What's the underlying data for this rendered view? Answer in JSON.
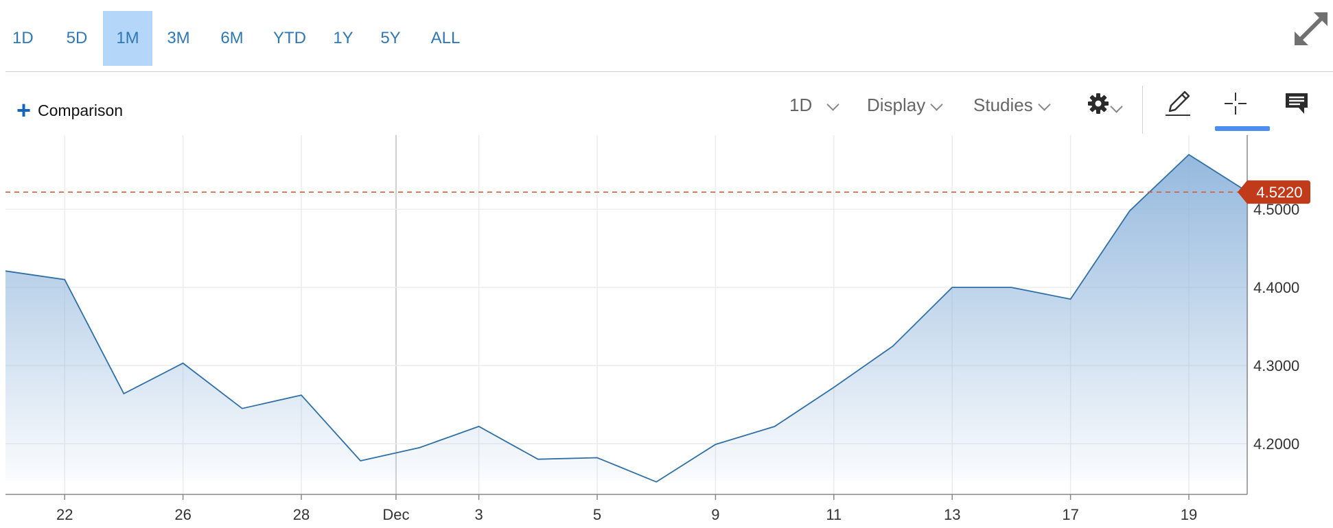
{
  "range_bar": {
    "buttons": [
      {
        "label": "1D",
        "active": false
      },
      {
        "label": "5D",
        "active": false
      },
      {
        "label": "1M",
        "active": true
      },
      {
        "label": "3M",
        "active": false
      },
      {
        "label": "6M",
        "active": false
      },
      {
        "label": "YTD",
        "active": false
      },
      {
        "label": "1Y",
        "active": false
      },
      {
        "label": "5Y",
        "active": false
      },
      {
        "label": "ALL",
        "active": false
      }
    ],
    "expand_icon": "expand-arrows-icon"
  },
  "toolbar": {
    "comparison_label": "Comparison",
    "interval_label": "1D",
    "display_label": "Display",
    "studies_label": "Studies",
    "settings_icon": "gear-icon",
    "draw_icon": "pencil-icon",
    "crosshair_icon": "crosshair-icon",
    "comment_icon": "comment-icon"
  },
  "colors": {
    "accent": "#2f78b7",
    "active_range_bg": "#b4d6f8",
    "line": "#2e6fa7",
    "area_top": "#93b9de",
    "price_badge": "#c13a1a",
    "price_line": "#d0603a",
    "last_point": "#29b6f6",
    "crosshair_underline": "#4a8ff0"
  },
  "chart_data": {
    "type": "area",
    "x_tick_labels": [
      "22",
      "26",
      "28",
      "Dec",
      "3",
      "5",
      "9",
      "11",
      "13",
      "17",
      "19"
    ],
    "y_tick_labels": [
      "4.2000",
      "4.3000",
      "4.4000",
      "4.5000"
    ],
    "ylim": [
      4.135,
      4.595
    ],
    "current_value_label": "4.5220",
    "current_value": 4.522,
    "grid": true,
    "points": [
      {
        "x": "2024-11-21",
        "y": 4.421
      },
      {
        "x": "2024-11-22",
        "y": 4.41
      },
      {
        "x": "2024-11-25",
        "y": 4.264
      },
      {
        "x": "2024-11-26",
        "y": 4.303
      },
      {
        "x": "2024-11-27",
        "y": 4.245
      },
      {
        "x": "2024-11-28",
        "y": 4.262
      },
      {
        "x": "2024-11-29",
        "y": 4.178
      },
      {
        "x": "2024-12-02",
        "y": 4.195
      },
      {
        "x": "2024-12-03",
        "y": 4.222
      },
      {
        "x": "2024-12-04",
        "y": 4.18
      },
      {
        "x": "2024-12-05",
        "y": 4.182
      },
      {
        "x": "2024-12-06",
        "y": 4.151
      },
      {
        "x": "2024-12-09",
        "y": 4.199
      },
      {
        "x": "2024-12-10",
        "y": 4.222
      },
      {
        "x": "2024-12-11",
        "y": 4.272
      },
      {
        "x": "2024-12-12",
        "y": 4.325
      },
      {
        "x": "2024-12-13",
        "y": 4.4
      },
      {
        "x": "2024-12-16",
        "y": 4.4
      },
      {
        "x": "2024-12-17",
        "y": 4.385
      },
      {
        "x": "2024-12-18",
        "y": 4.498
      },
      {
        "x": "2024-12-19",
        "y": 4.57
      },
      {
        "x": "2024-12-20",
        "y": 4.522
      }
    ]
  }
}
